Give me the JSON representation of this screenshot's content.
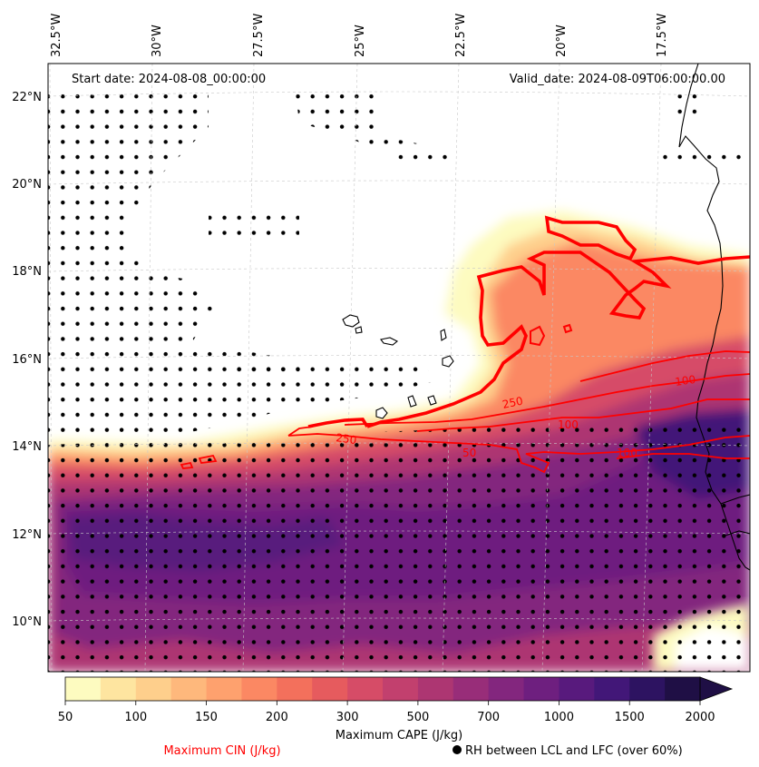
{
  "header": {
    "start_date": "Start date: 2024-08-08_00:00:00",
    "valid_date": "Valid_date: 2024-08-09T06:00:00.00"
  },
  "axes": {
    "lon_ticks": [
      {
        "label": "32.5°W",
        "value": -32.5
      },
      {
        "label": "30°W",
        "value": -30
      },
      {
        "label": "27.5°W",
        "value": -27.5
      },
      {
        "label": "25°W",
        "value": -25
      },
      {
        "label": "22.5°W",
        "value": -22.5
      },
      {
        "label": "20°W",
        "value": -20
      },
      {
        "label": "17.5°W",
        "value": -17.5
      }
    ],
    "lat_ticks": [
      {
        "label": "22°N",
        "value": 22
      },
      {
        "label": "20°N",
        "value": 20
      },
      {
        "label": "18°N",
        "value": 18
      },
      {
        "label": "16°N",
        "value": 16
      },
      {
        "label": "14°N",
        "value": 14
      },
      {
        "label": "12°N",
        "value": 12
      },
      {
        "label": "10°N",
        "value": 10
      }
    ],
    "lon_range": [
      -32.5,
      -15.2
    ],
    "lat_range": [
      8.9,
      22.8
    ],
    "gridlines": true
  },
  "colorbar": {
    "label": "Maximum CAPE (J/kg)",
    "tick_labels": [
      "50",
      "100",
      "150",
      "200",
      "300",
      "500",
      "700",
      "1000",
      "1500",
      "2000"
    ],
    "colors": [
      "#fdfbc0",
      "#fee5a0",
      "#fecf8c",
      "#feb87c",
      "#fea16e",
      "#fb8863",
      "#f3705c",
      "#e65b5e",
      "#d64c67",
      "#c2406e",
      "#ad3672",
      "#982d79",
      "#83267e",
      "#6e1f7f",
      "#581a7d",
      "#421778",
      "#2d1361",
      "#1f0f45"
    ],
    "extend": "max"
  },
  "legend": {
    "cin_label": "Maximum CIN (J/kg)",
    "rh_label": "RH between LCL and LFC (over 60%)",
    "cin_color": "#ff0000",
    "rh_marker": "black-dot"
  },
  "contours": {
    "labels": [
      "250",
      "250",
      "100",
      "100",
      "50",
      "100"
    ]
  }
}
